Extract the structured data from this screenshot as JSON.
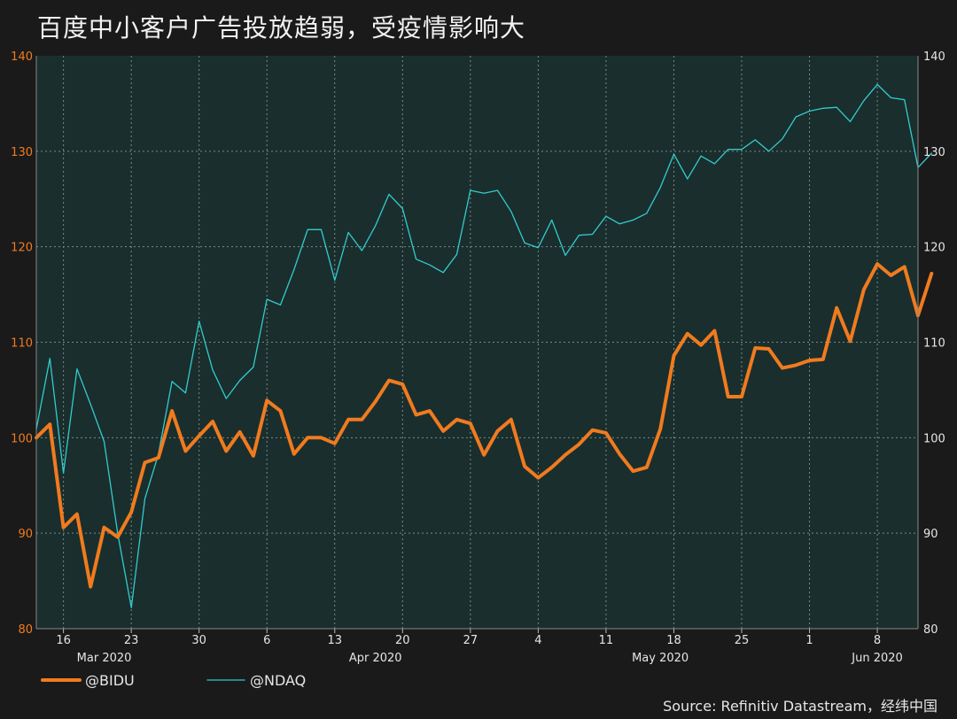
{
  "title": "百度中小客户广告投放趋弱，受疫情影响大",
  "source": "Source: Refinitiv Datastream，经纬中国",
  "colors": {
    "background": "#1a1a1a",
    "plot_bg": "#1a2e2e",
    "grid": "#7a8a8a",
    "bidu": "#f07b1e",
    "ndaq": "#33cccc",
    "left_axis": "#f07b1e",
    "right_axis": "#e6e6e6"
  },
  "chart_data": {
    "type": "line",
    "title": "百度中小客户广告投放趋弱，受疫情影响大",
    "ylim": [
      80,
      140
    ],
    "yticks": [
      80,
      90,
      100,
      110,
      120,
      130,
      140
    ],
    "ytick_labels_left": [
      "80",
      "90",
      "100",
      "110",
      "120",
      "130",
      "140"
    ],
    "ytick_labels_right": [
      "80",
      "90",
      "100",
      "110",
      "120",
      "130",
      "140"
    ],
    "x_index_range": [
      0,
      65
    ],
    "xticks": [
      {
        "i": 2,
        "label": "16"
      },
      {
        "i": 7,
        "label": "23"
      },
      {
        "i": 12,
        "label": "30"
      },
      {
        "i": 17,
        "label": "6"
      },
      {
        "i": 22,
        "label": "13"
      },
      {
        "i": 27,
        "label": "20"
      },
      {
        "i": 32,
        "label": "27"
      },
      {
        "i": 37,
        "label": "4"
      },
      {
        "i": 42,
        "label": "11"
      },
      {
        "i": 47,
        "label": "18"
      },
      {
        "i": 52,
        "label": "25"
      },
      {
        "i": 57,
        "label": "1"
      },
      {
        "i": 62,
        "label": "8"
      }
    ],
    "month_labels": [
      {
        "i": 5,
        "label": "Mar 2020"
      },
      {
        "i": 25,
        "label": "Apr 2020"
      },
      {
        "i": 46,
        "label": "May 2020"
      },
      {
        "i": 62,
        "label": "Jun 2020"
      }
    ],
    "legend_position": "bottom-left",
    "grid": true,
    "series": [
      {
        "name": "@BIDU",
        "color": "#f07b1e",
        "axis": "left",
        "values": [
          100,
          101.4,
          90.6,
          92.0,
          84.4,
          90.6,
          89.6,
          92.2,
          97.4,
          97.9,
          102.8,
          98.6,
          100.2,
          101.7,
          98.6,
          100.6,
          98.1,
          103.9,
          102.8,
          98.3,
          100.0,
          100.0,
          99.4,
          101.9,
          101.9,
          103.8,
          106.0,
          105.6,
          102.4,
          102.8,
          100.7,
          101.9,
          101.5,
          98.2,
          100.7,
          101.9,
          97.0,
          95.8,
          96.9,
          98.2,
          99.3,
          100.8,
          100.5,
          98.3,
          96.5,
          96.9,
          100.9,
          108.6,
          110.9,
          109.7,
          111.2,
          104.3,
          104.3,
          109.4,
          109.3,
          107.3,
          107.6,
          108.1,
          108.2,
          113.6,
          110.1,
          115.5,
          118.2,
          117.0,
          117.9,
          112.8,
          117.2
        ]
      },
      {
        "name": "@NDAQ",
        "color": "#33cccc",
        "axis": "right",
        "values": [
          100.9,
          108.3,
          96.3,
          107.2,
          103.5,
          99.6,
          90.0,
          82.2,
          93.6,
          98.3,
          105.9,
          104.7,
          112.2,
          107.1,
          104.1,
          106.0,
          107.4,
          114.5,
          113.9,
          117.6,
          121.8,
          121.8,
          116.5,
          121.5,
          119.6,
          122.2,
          125.5,
          124.0,
          118.7,
          118.1,
          117.3,
          119.2,
          125.9,
          125.6,
          125.9,
          123.7,
          120.4,
          119.9,
          122.8,
          119.1,
          121.2,
          121.3,
          123.2,
          122.4,
          122.8,
          123.5,
          126.2,
          129.7,
          127.1,
          129.5,
          128.7,
          130.2,
          130.2,
          131.2,
          130.0,
          131.3,
          133.6,
          134.2,
          134.5,
          134.6,
          133.1,
          135.3,
          137.0,
          135.6,
          135.4,
          128.3,
          129.8
        ]
      }
    ]
  }
}
